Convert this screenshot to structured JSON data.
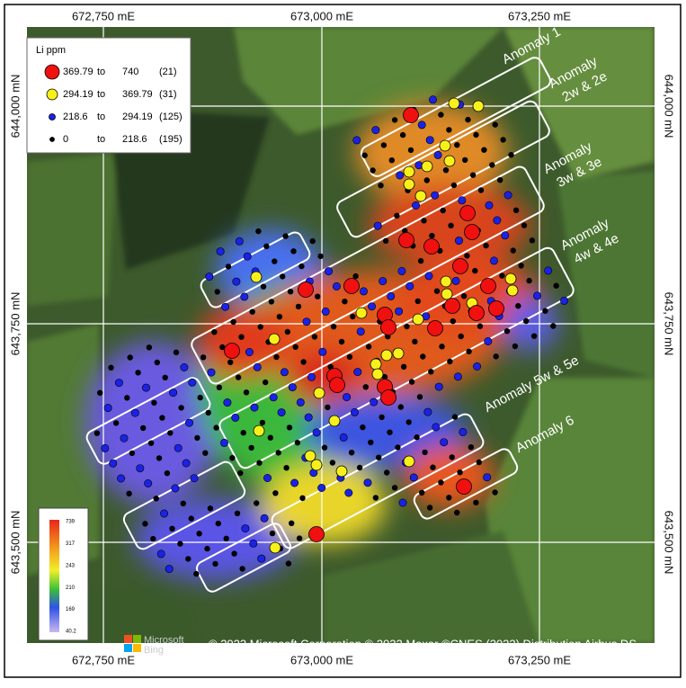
{
  "axis_labels": {
    "top": [
      "672,750 mE",
      "673,000 mE",
      "673,250 mE"
    ],
    "bottom": [
      "672,750 mE",
      "673,000 mE",
      "673,250 mE"
    ],
    "left": [
      "644,000 mN",
      "643,750 mN",
      "643,500 mN"
    ],
    "right": [
      "644,000 mN",
      "643,750 mN",
      "643,500 mN"
    ]
  },
  "legend": {
    "title": "Li ppm",
    "entries": [
      {
        "from": "369.79",
        "to": "to",
        "upper": "740",
        "count": "(21)"
      },
      {
        "from": "294.19",
        "to": "to",
        "upper": "369.79",
        "count": "(31)"
      },
      {
        "from": "218.6",
        "to": "to",
        "upper": "294.19",
        "count": "(125)"
      },
      {
        "from": "0",
        "to": "to",
        "upper": "218.6",
        "count": "(195)"
      }
    ]
  },
  "color_scale": {
    "labels": [
      "739",
      "317",
      "243",
      "210",
      "169",
      "40.2"
    ]
  },
  "anomalies": [
    {
      "lines": [
        "Anomaly  1"
      ]
    },
    {
      "lines": [
        "Anomaly",
        "2w & 2e"
      ]
    },
    {
      "lines": [
        "Anomaly",
        "3w & 3e"
      ]
    },
    {
      "lines": [
        "Anomaly",
        "4w & 4e"
      ]
    },
    {
      "lines": [
        "Anomaly 5w & 5e"
      ]
    },
    {
      "lines": [
        "Anomaly  6"
      ]
    }
  ],
  "logo": {
    "lines": [
      "Microsoft",
      "Bing"
    ]
  },
  "attribution": "© 2023 Microsoft Corporation © 2022 Maxar ©CNES (2022) Distribution Airbus DS"
}
